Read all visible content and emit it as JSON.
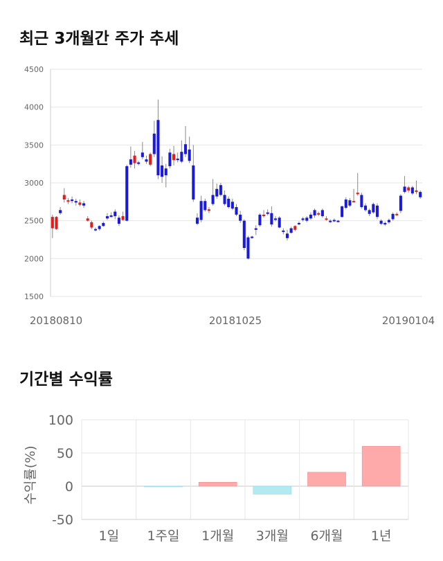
{
  "section1": {
    "title": "최근 3개월간 주가 추세"
  },
  "section2": {
    "title": "기간별 수익률"
  },
  "chart_data": [
    {
      "type": "candlestick",
      "title": "최근 3개월간 주가 추세",
      "ylim": [
        1500,
        4500
      ],
      "yticks": [
        "4500",
        "4000",
        "3500",
        "3000",
        "2500",
        "2000",
        "1500"
      ],
      "xticks": [
        "20180810",
        "20181025",
        "20190104"
      ],
      "grid": true,
      "colors": {
        "up": "#e21b1b",
        "down": "#1a1adb",
        "wick": "#888888"
      },
      "candles": [
        [
          2400,
          2550,
          2270,
          2580
        ],
        [
          2390,
          2550,
          2380,
          2560
        ],
        [
          2640,
          2600,
          2580,
          2680
        ],
        [
          2780,
          2840,
          2740,
          2930
        ],
        [
          2760,
          2770,
          2720,
          2800
        ],
        [
          2780,
          2760,
          2730,
          2820
        ],
        [
          2760,
          2740,
          2700,
          2790
        ],
        [
          2710,
          2740,
          2690,
          2780
        ],
        [
          2730,
          2700,
          2670,
          2760
        ],
        [
          2500,
          2530,
          2490,
          2560
        ],
        [
          2410,
          2480,
          2390,
          2500
        ],
        [
          2390,
          2380,
          2360,
          2410
        ],
        [
          2430,
          2390,
          2370,
          2440
        ],
        [
          2470,
          2430,
          2420,
          2490
        ],
        [
          2560,
          2530,
          2510,
          2600
        ],
        [
          2570,
          2550,
          2540,
          2610
        ],
        [
          2620,
          2560,
          2520,
          2650
        ],
        [
          2540,
          2460,
          2430,
          2570
        ],
        [
          2510,
          2560,
          2500,
          2620
        ],
        [
          3220,
          2500,
          2490,
          3240
        ],
        [
          3310,
          3240,
          3200,
          3480
        ],
        [
          3260,
          3360,
          3190,
          3420
        ],
        [
          3270,
          3250,
          3230,
          3290
        ],
        [
          3400,
          3340,
          3310,
          3540
        ],
        [
          3310,
          3280,
          3250,
          3360
        ],
        [
          3240,
          3380,
          3220,
          3400
        ],
        [
          3650,
          3380,
          3340,
          3820
        ],
        [
          3830,
          3100,
          3050,
          4100
        ],
        [
          3230,
          3080,
          3000,
          3350
        ],
        [
          3190,
          3100,
          2940,
          3250
        ],
        [
          3400,
          3220,
          3190,
          3450
        ],
        [
          3300,
          3380,
          3230,
          3490
        ],
        [
          3320,
          3300,
          3270,
          3400
        ],
        [
          3410,
          3280,
          3260,
          3560
        ],
        [
          3510,
          3380,
          3340,
          3750
        ],
        [
          3440,
          3290,
          3260,
          3610
        ],
        [
          3230,
          2780,
          2750,
          3500
        ],
        [
          2540,
          2460,
          2440,
          2600
        ],
        [
          2760,
          2510,
          2480,
          2830
        ],
        [
          2760,
          2640,
          2620,
          2790
        ],
        [
          2630,
          2650,
          2600,
          2680
        ],
        [
          2840,
          2720,
          2700,
          3050
        ],
        [
          2920,
          2820,
          2790,
          2990
        ],
        [
          2970,
          2840,
          2820,
          3000
        ],
        [
          2840,
          2720,
          2700,
          2900
        ],
        [
          2790,
          2680,
          2660,
          2820
        ],
        [
          2750,
          2660,
          2640,
          2790
        ],
        [
          2680,
          2580,
          2560,
          2720
        ],
        [
          2580,
          2500,
          2470,
          2630
        ],
        [
          2500,
          2140,
          2110,
          2520
        ],
        [
          2280,
          2000,
          1990,
          2300
        ],
        [
          2290,
          2280,
          2260,
          2300
        ],
        [
          2400,
          2380,
          2310,
          2440
        ],
        [
          2580,
          2440,
          2420,
          2600
        ],
        [
          2560,
          2580,
          2540,
          2640
        ],
        [
          2610,
          2590,
          2570,
          2650
        ],
        [
          2600,
          2450,
          2420,
          2690
        ],
        [
          2530,
          2510,
          2490,
          2560
        ],
        [
          2540,
          2410,
          2400,
          2560
        ],
        [
          2370,
          2360,
          2320,
          2400
        ],
        [
          2330,
          2270,
          2240,
          2380
        ],
        [
          2400,
          2340,
          2330,
          2420
        ],
        [
          2380,
          2430,
          2360,
          2440
        ],
        [
          2470,
          2460,
          2440,
          2490
        ],
        [
          2530,
          2510,
          2490,
          2550
        ],
        [
          2540,
          2500,
          2480,
          2560
        ],
        [
          2580,
          2530,
          2510,
          2610
        ],
        [
          2640,
          2570,
          2540,
          2660
        ],
        [
          2580,
          2600,
          2560,
          2620
        ],
        [
          2640,
          2560,
          2540,
          2660
        ],
        [
          2530,
          2530,
          2500,
          2560
        ],
        [
          2500,
          2490,
          2470,
          2520
        ],
        [
          2510,
          2500,
          2480,
          2530
        ],
        [
          2500,
          2490,
          2480,
          2510
        ],
        [
          2690,
          2550,
          2540,
          2700
        ],
        [
          2780,
          2670,
          2650,
          2810
        ],
        [
          2770,
          2700,
          2680,
          2800
        ],
        [
          2760,
          2760,
          2740,
          2920
        ],
        [
          2850,
          2870,
          2830,
          3130
        ],
        [
          2840,
          2680,
          2660,
          2870
        ],
        [
          2700,
          2640,
          2620,
          2730
        ],
        [
          2640,
          2590,
          2560,
          2660
        ],
        [
          2720,
          2610,
          2590,
          2740
        ],
        [
          2700,
          2550,
          2520,
          2730
        ],
        [
          2500,
          2460,
          2440,
          2520
        ],
        [
          2470,
          2450,
          2430,
          2490
        ],
        [
          2510,
          2480,
          2460,
          2530
        ],
        [
          2590,
          2520,
          2500,
          2610
        ],
        [
          2580,
          2590,
          2560,
          2610
        ],
        [
          2830,
          2630,
          2600,
          2850
        ],
        [
          2950,
          2880,
          2860,
          3090
        ],
        [
          2900,
          2940,
          2870,
          2960
        ],
        [
          2940,
          2860,
          2840,
          2960
        ],
        [
          2880,
          2900,
          2850,
          3030
        ],
        [
          2880,
          2810,
          2790,
          2900
        ]
      ]
    },
    {
      "type": "bar",
      "categories": [
        "1일",
        "1주일",
        "1개월",
        "3개월",
        "6개월",
        "1년"
      ],
      "values": [
        0,
        -1,
        6,
        -12,
        21,
        60
      ],
      "ylabel": "수익률(%)",
      "ylim": [
        -50,
        100
      ],
      "yticks": [
        "100",
        "50",
        "0",
        "-50"
      ],
      "colors": {
        "positive": "#ffaaaa",
        "negative": "#b2eaf2"
      },
      "grid": true
    }
  ]
}
